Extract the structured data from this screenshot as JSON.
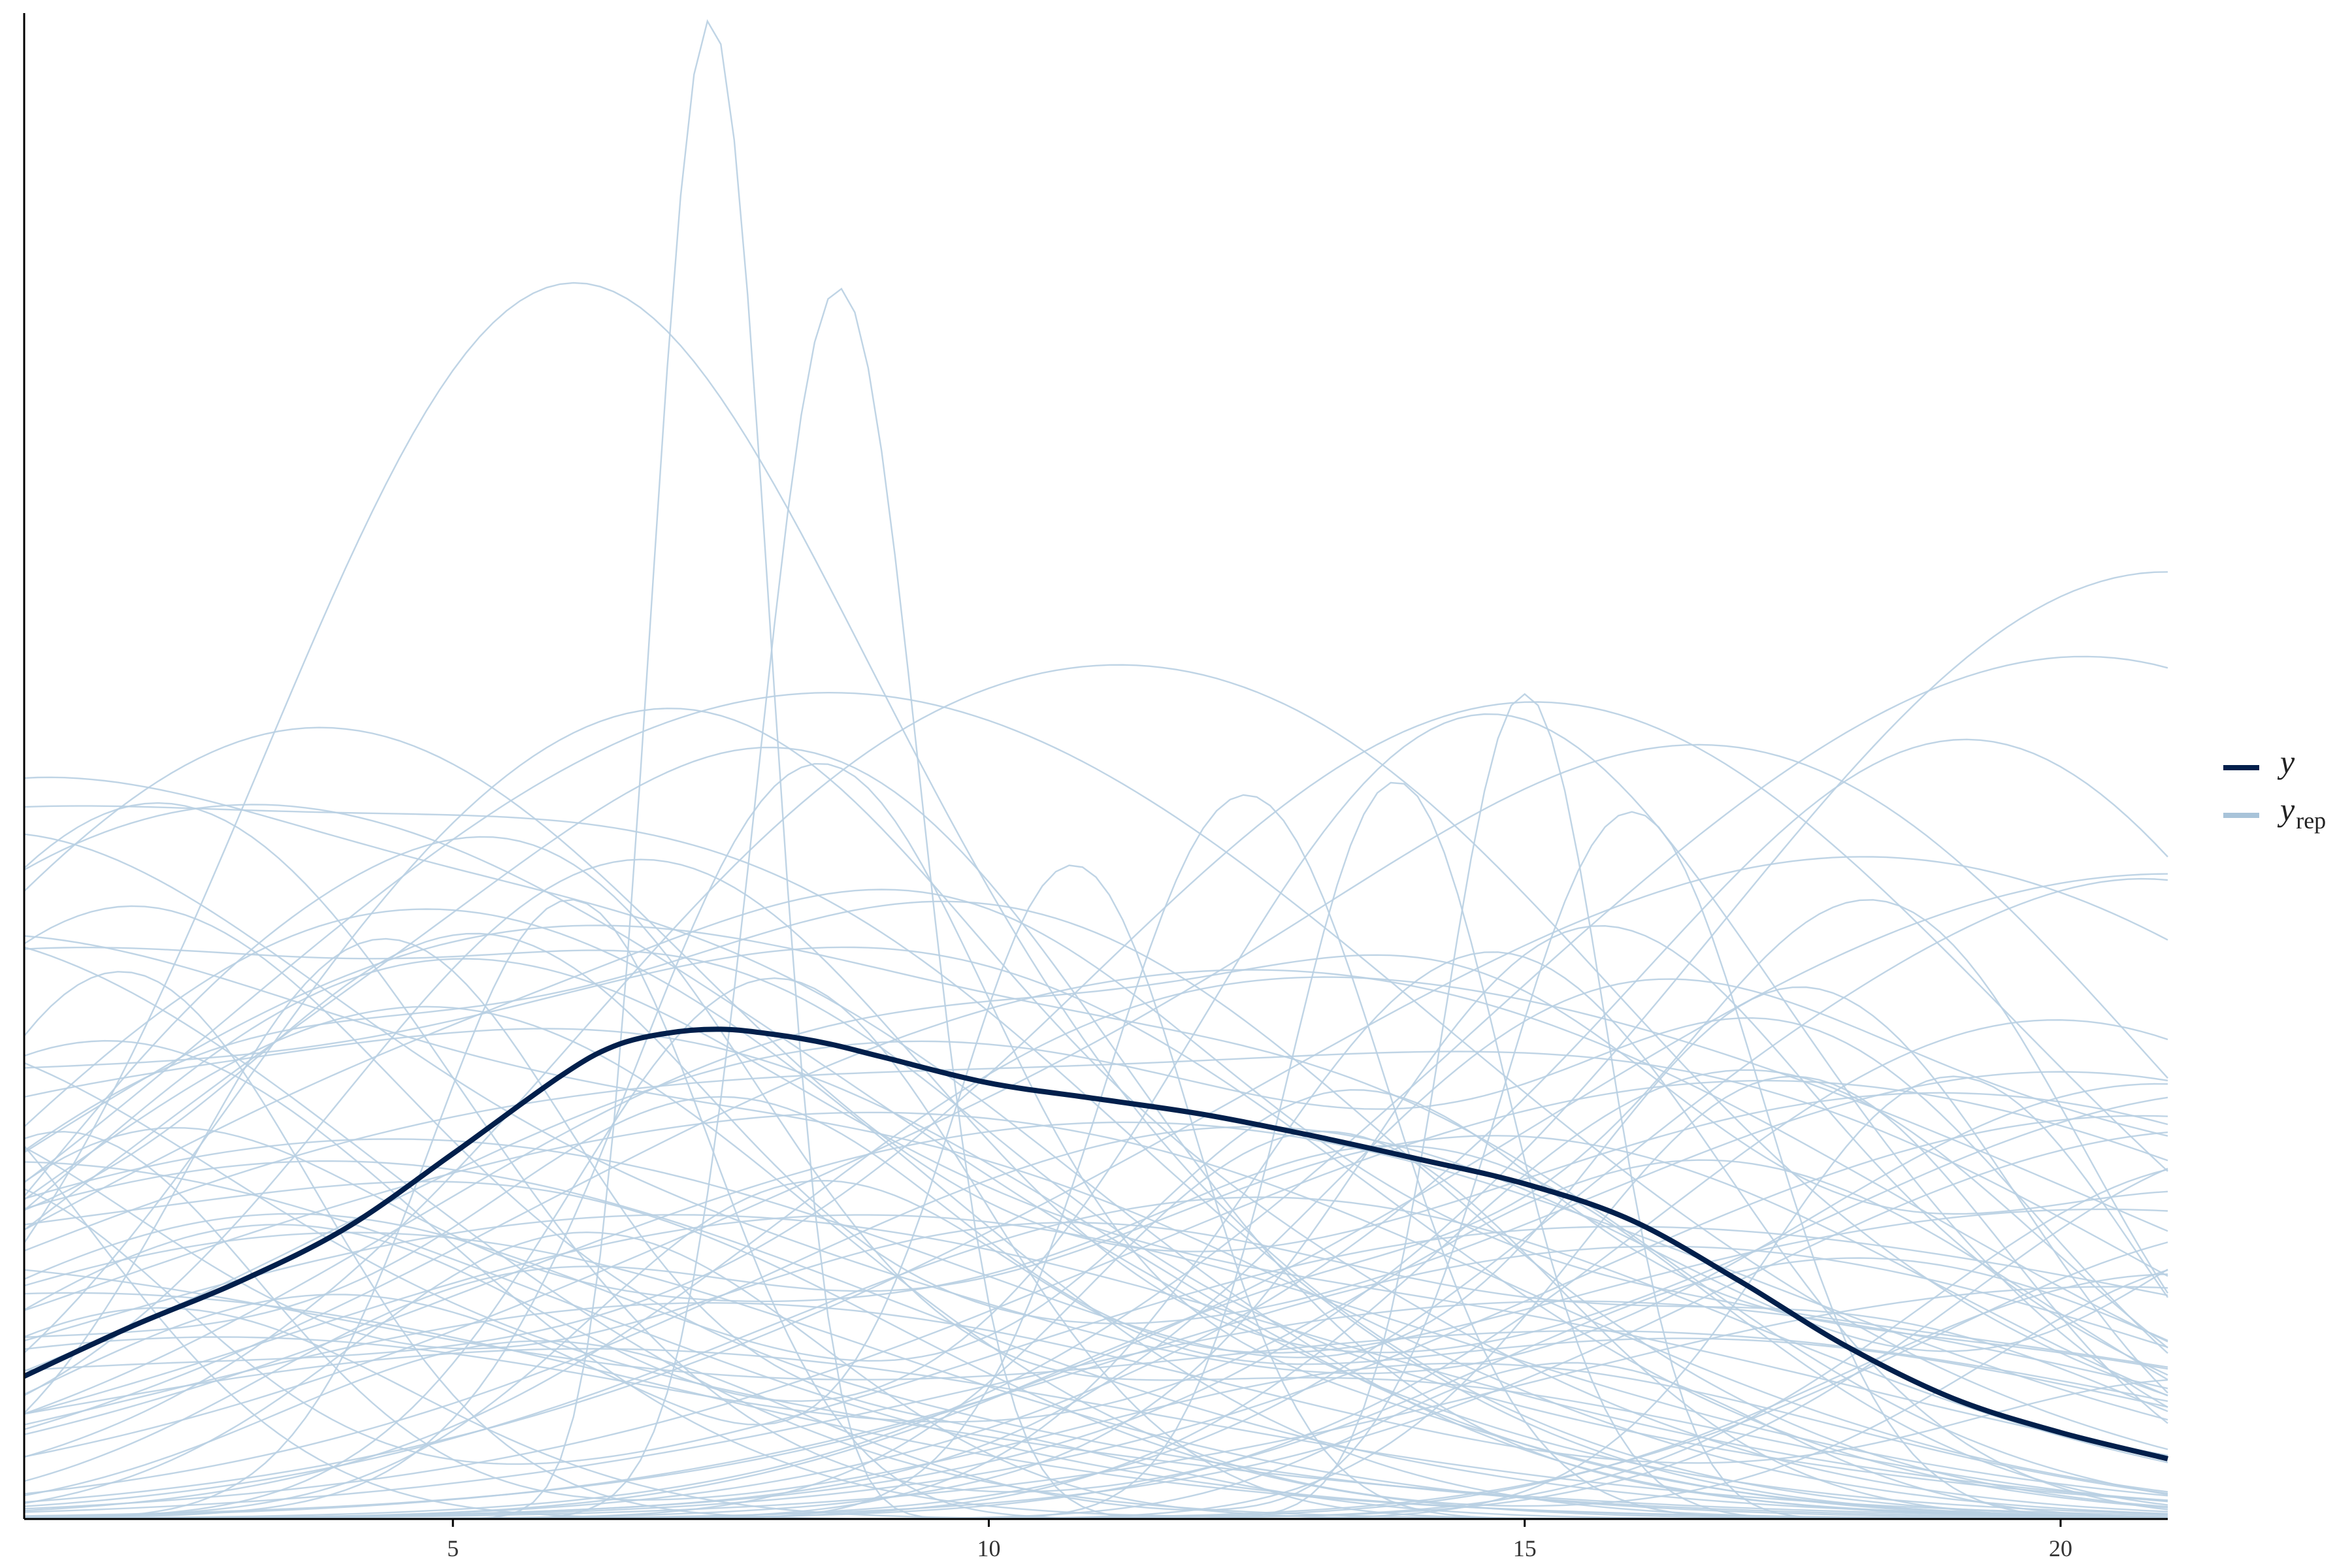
{
  "chart_data": {
    "type": "line",
    "title": "",
    "xlabel": "",
    "ylabel": "",
    "xlim": [
      1,
      21
    ],
    "ylim": [
      0,
      0.115
    ],
    "x_ticks": [
      5,
      10,
      15,
      20
    ],
    "x_tick_labels": [
      "5",
      "10",
      "15",
      "20"
    ],
    "grid": false,
    "legend_position": "right",
    "legend": [
      {
        "base": "y",
        "sub": "",
        "color": "#011f4b",
        "role": "observed"
      },
      {
        "base": "y",
        "sub": "rep",
        "color": "#a8c3d9",
        "role": "replicated"
      }
    ],
    "colors": {
      "y": "#011f4b",
      "yrep": "#b8cfe2",
      "axis": "#000000"
    },
    "series": [
      {
        "name": "y",
        "x": [
          1,
          2,
          3,
          4,
          5,
          6,
          6.5,
          7,
          7.5,
          8,
          8.5,
          9,
          10,
          11,
          12,
          13,
          14,
          15,
          16,
          17,
          18,
          19,
          20,
          21
        ],
        "y": [
          0.0109,
          0.0147,
          0.0181,
          0.0222,
          0.0279,
          0.0338,
          0.0361,
          0.0371,
          0.0374,
          0.037,
          0.0363,
          0.0353,
          0.0333,
          0.0321,
          0.0309,
          0.0293,
          0.0275,
          0.0256,
          0.0228,
          0.0182,
          0.0132,
          0.0092,
          0.0066,
          0.0046
        ]
      }
    ],
    "replicates": {
      "x_grid": [
        1,
        21
      ],
      "count": 100,
      "peaks": [
        {
          "x": 7.4,
          "y": 0.1145,
          "sd": 0.55
        },
        {
          "x": 8.6,
          "y": 0.094,
          "sd": 0.75
        },
        {
          "x": 15.0,
          "y": 0.063,
          "sd": 0.75
        },
        {
          "x": 13.8,
          "y": 0.0563,
          "sd": 1.0
        },
        {
          "x": 12.4,
          "y": 0.0553,
          "sd": 1.3
        },
        {
          "x": 16.0,
          "y": 0.054,
          "sd": 1.2
        },
        {
          "x": 10.8,
          "y": 0.0493,
          "sd": 1.1
        },
        {
          "x": 8.3,
          "y": 0.0493,
          "sd": 1.6
        },
        {
          "x": 6.1,
          "y": 0.0473,
          "sd": 1.3
        },
        {
          "x": 4.3,
          "y": 0.0433,
          "sd": 1.8
        },
        {
          "x": 1.9,
          "y": 0.0418,
          "sd": 1.8
        },
        {
          "x": 19.0,
          "y": 0.0338,
          "sd": 1.7
        },
        {
          "x": 14.7,
          "y": 0.0433,
          "sd": 2.2
        },
        {
          "x": 8.0,
          "y": 0.0413,
          "sd": 1.9
        },
        {
          "x": 17.5,
          "y": 0.0338,
          "sd": 2.0
        }
      ]
    }
  }
}
